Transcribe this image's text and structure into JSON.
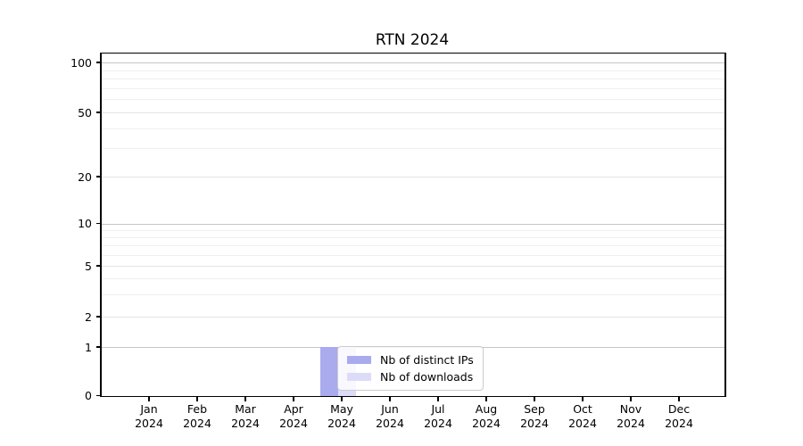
{
  "chart_data": {
    "type": "bar",
    "title": "RTN 2024",
    "categories": [
      "Jan 2024",
      "Feb 2024",
      "Mar 2024",
      "Apr 2024",
      "May 2024",
      "Jun 2024",
      "Jul 2024",
      "Aug 2024",
      "Sep 2024",
      "Oct 2024",
      "Nov 2024",
      "Dec 2024"
    ],
    "series": [
      {
        "name": "Nb of distinct IPs",
        "color": "#aaaaee",
        "values": [
          0,
          0,
          0,
          0,
          1,
          0,
          0,
          0,
          0,
          0,
          0,
          0
        ]
      },
      {
        "name": "Nb of downloads",
        "color": "#dcdcf8",
        "values": [
          0,
          0,
          0,
          0,
          1,
          0,
          0,
          0,
          0,
          0,
          0,
          0
        ]
      }
    ],
    "xlabel": "",
    "ylabel": "",
    "yscale": "symlog",
    "yticks": [
      0,
      1,
      2,
      5,
      10,
      20,
      50,
      100
    ],
    "ylim": [
      0,
      115
    ],
    "grid": true,
    "legend": {
      "entries": [
        "Nb of distinct IPs",
        "Nb of downloads"
      ],
      "position": "lower-center-overlay"
    }
  },
  "colors": {
    "spine": "#000000",
    "grid_decade": "#c6c6c6",
    "grid_major": "#e4e4e4",
    "grid_minor": "#efefef",
    "background": "#ffffff"
  }
}
